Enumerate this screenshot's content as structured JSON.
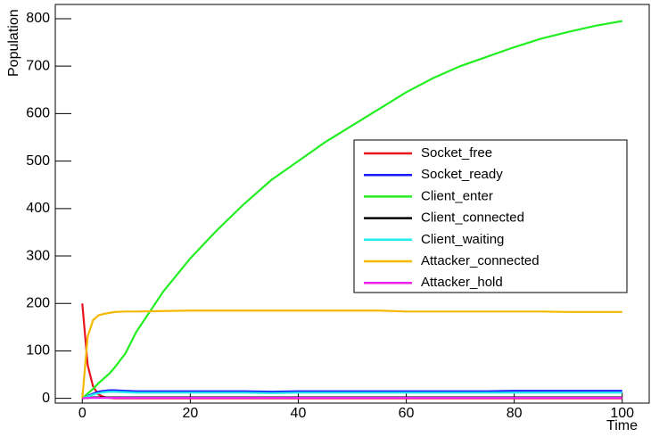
{
  "chart_data": {
    "type": "line",
    "xlabel": "Time",
    "ylabel": "Population",
    "x": [
      0,
      1,
      2,
      3,
      4,
      5,
      6,
      8,
      10,
      15,
      20,
      25,
      30,
      35,
      40,
      45,
      50,
      55,
      60,
      65,
      70,
      75,
      80,
      85,
      90,
      95,
      100
    ],
    "xlim": [
      -5,
      105
    ],
    "xticks": [
      0,
      20,
      40,
      60,
      80,
      100
    ],
    "ylim": [
      -10,
      830
    ],
    "yticks": [
      0,
      100,
      200,
      300,
      400,
      500,
      600,
      700,
      800
    ],
    "legend": "right",
    "series": [
      {
        "name": "Socket_free",
        "color": "#e8141e",
        "values": [
          200,
          70,
          25,
          8,
          3,
          1,
          0,
          0,
          0,
          0,
          0,
          0,
          0,
          0,
          0,
          0,
          0,
          0,
          0,
          0,
          0,
          0,
          0,
          0,
          0,
          0,
          0
        ]
      },
      {
        "name": "Socket_ready",
        "color": "#1a1aff",
        "values": [
          0,
          5,
          10,
          14,
          16,
          17,
          17,
          16,
          15,
          15,
          15,
          15,
          15,
          14,
          15,
          15,
          15,
          15,
          15,
          15,
          15,
          15,
          16,
          16,
          16,
          16,
          16
        ]
      },
      {
        "name": "Client_enter",
        "color": "#22ee22",
        "values": [
          0,
          10,
          20,
          32,
          42,
          52,
          65,
          95,
          140,
          225,
          295,
          355,
          410,
          460,
          500,
          540,
          575,
          610,
          645,
          675,
          700,
          720,
          740,
          758,
          772,
          785,
          795
        ]
      },
      {
        "name": "Client_connected",
        "color": "#000000",
        "values": [
          0,
          1,
          2,
          2,
          2,
          2,
          2,
          2,
          2,
          2,
          2,
          2,
          2,
          2,
          2,
          2,
          2,
          2,
          2,
          2,
          2,
          2,
          2,
          2,
          2,
          2,
          2
        ]
      },
      {
        "name": "Client_waiting",
        "color": "#22eeee",
        "values": [
          0,
          4,
          8,
          11,
          13,
          14,
          14,
          13,
          12,
          12,
          12,
          12,
          12,
          11,
          12,
          12,
          12,
          12,
          12,
          12,
          12,
          12,
          12,
          12,
          12,
          12,
          12
        ]
      },
      {
        "name": "Attacker_connected",
        "color": "#f5b800",
        "values": [
          0,
          130,
          165,
          175,
          178,
          180,
          182,
          183,
          183,
          184,
          185,
          185,
          185,
          185,
          185,
          185,
          185,
          185,
          183,
          183,
          183,
          183,
          183,
          183,
          182,
          182,
          182
        ]
      },
      {
        "name": "Attacker_hold",
        "color": "#ee22ee",
        "values": [
          0,
          1,
          1,
          1,
          1,
          1,
          1,
          1,
          1,
          1,
          1,
          1,
          1,
          1,
          1,
          1,
          1,
          1,
          1,
          1,
          1,
          1,
          1,
          1,
          1,
          1,
          1
        ]
      }
    ]
  }
}
